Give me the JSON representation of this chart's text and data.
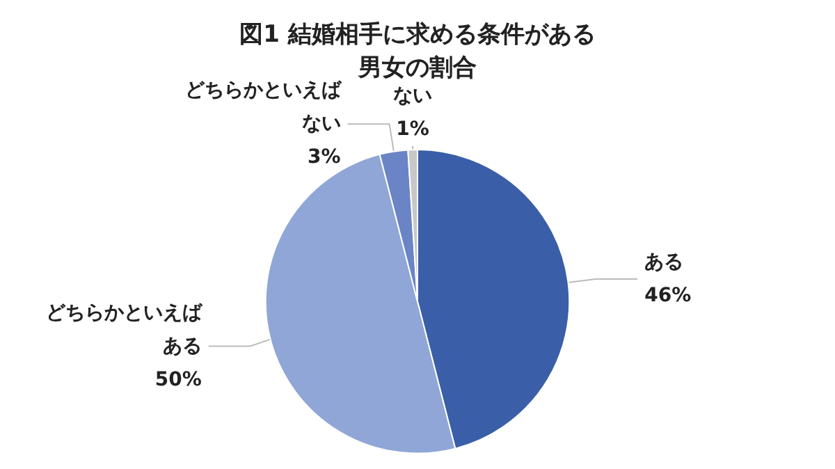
{
  "chart_data": {
    "type": "pie",
    "title": "図1 結婚相手に求める条件がある男女の割合",
    "categories": [
      "ある",
      "どちらかといえばある",
      "どちらかといえばない",
      "ない"
    ],
    "values": [
      46,
      50,
      3,
      1
    ],
    "value_labels": [
      "46%",
      "50%",
      "3%",
      "1%"
    ],
    "colors": [
      "#3a5fa8",
      "#8fa6d6",
      "#6a84c6",
      "#c8c8c8"
    ],
    "legend": false
  }
}
